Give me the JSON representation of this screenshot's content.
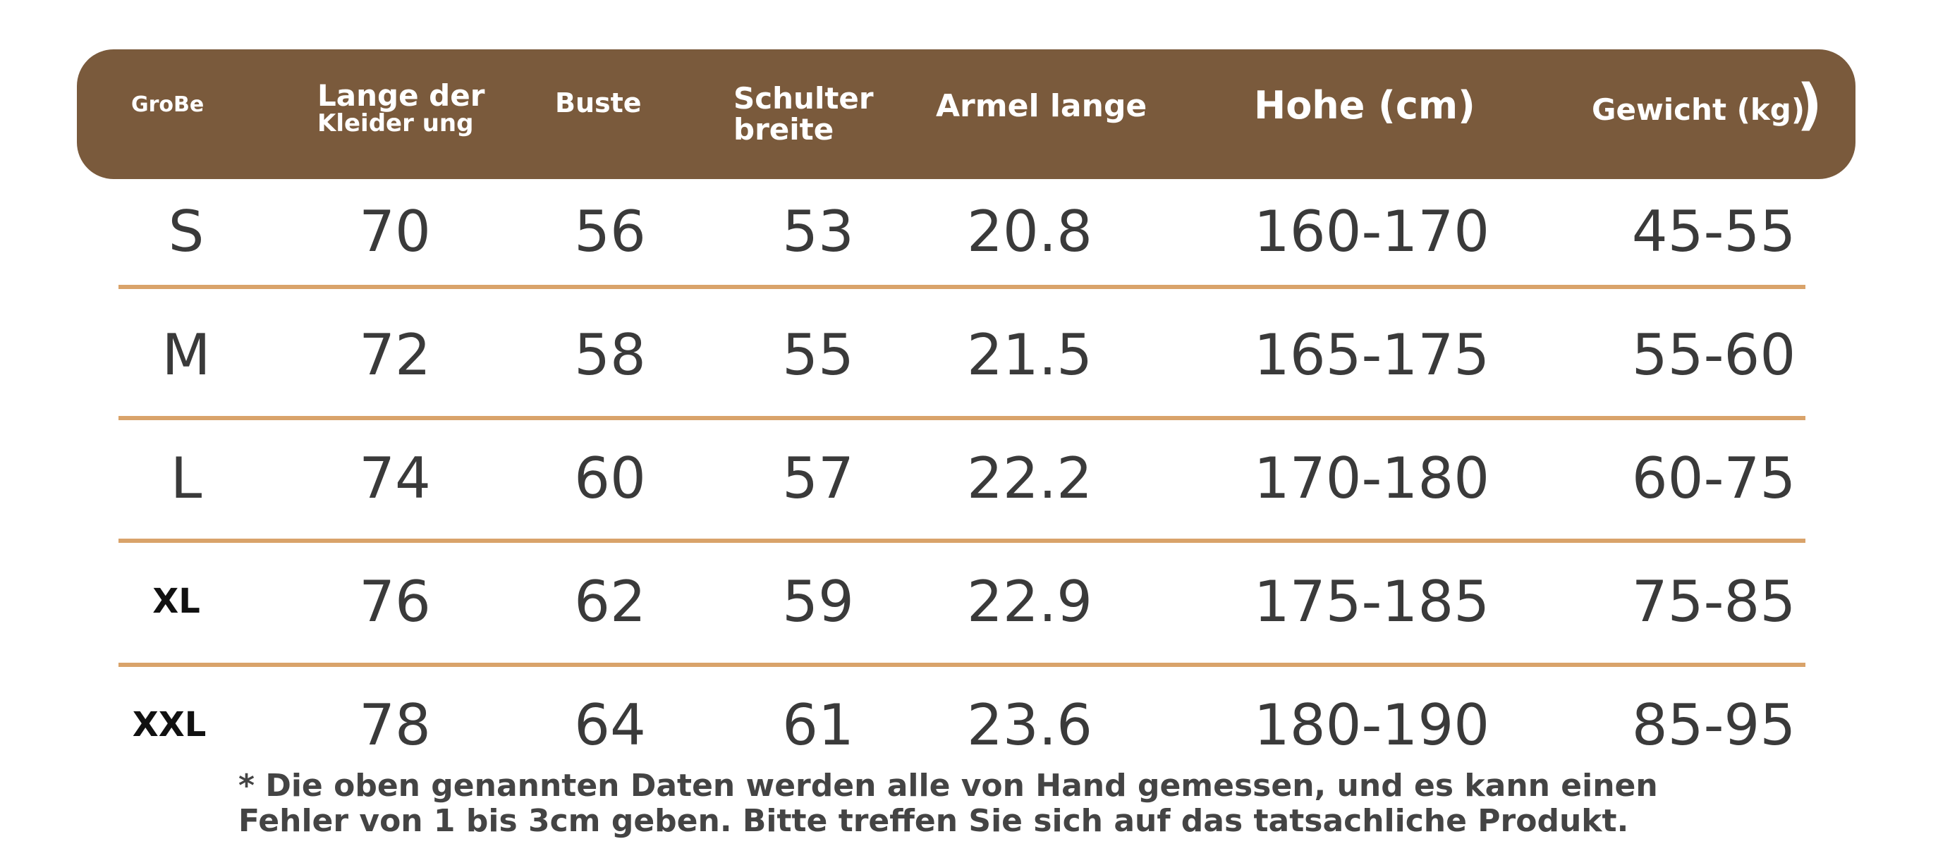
{
  "colors": {
    "header_background": "#7a5a3c",
    "header_text": "#ffffff",
    "divider": "#d9a36a",
    "cell_text": "#3a3a3a"
  },
  "header": {
    "size": "GroBe",
    "length_line1": "Lange der",
    "length_line2": "Kleider ung",
    "bust": "Buste",
    "shoulder_line1": "Schulter",
    "shoulder_line2": "breite",
    "sleeve": "Armel lange",
    "height": "Hohe (cm)",
    "weight": "Gewicht (kg)",
    "trailing_mark": ")"
  },
  "rows": [
    {
      "size": "S",
      "length": "70",
      "bust": "56",
      "shoulder": "53",
      "sleeve": "20.8",
      "height": "160-170",
      "weight": "45-55"
    },
    {
      "size": "M",
      "length": "72",
      "bust": "58",
      "shoulder": "55",
      "sleeve": "21.5",
      "height": "165-175",
      "weight": "55-60"
    },
    {
      "size": "L",
      "length": "74",
      "bust": "60",
      "shoulder": "57",
      "sleeve": "22.2",
      "height": "170-180",
      "weight": "60-75"
    },
    {
      "size": "XL",
      "length": "76",
      "bust": "62",
      "shoulder": "59",
      "sleeve": "22.9",
      "height": "175-185",
      "weight": "75-85"
    },
    {
      "size": "XXL",
      "length": "78",
      "bust": "64",
      "shoulder": "61",
      "sleeve": "23.6",
      "height": "180-190",
      "weight": "85-95"
    }
  ],
  "footnote": {
    "line1": "* Die oben genannten Daten werden alle von Hand gemessen, und es kann einen",
    "line2": "Fehler von 1 bis 3cm geben. Bitte treffen Sie sich auf das tatsachliche Produkt."
  }
}
